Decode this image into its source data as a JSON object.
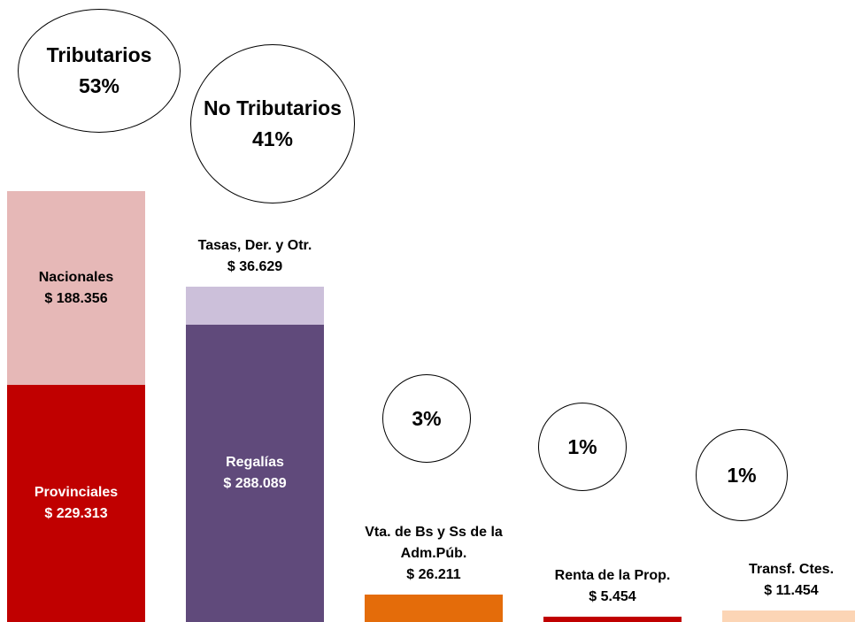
{
  "chart_data": {
    "type": "bar",
    "stacked": true,
    "ylim": [
      0,
      420000
    ],
    "groups": [
      {
        "name": "Tributarios",
        "share": 53,
        "share_label": "53%",
        "segments": [
          {
            "name": "Provinciales",
            "value": 229313,
            "value_label": "$ 229.313",
            "color": "#c00000"
          },
          {
            "name": "Nacionales",
            "value": 188356,
            "value_label": "$ 188.356",
            "color": "#e6b8b7"
          }
        ]
      },
      {
        "name": "No Tributarios",
        "share": 41,
        "share_label": "41%",
        "segments": [
          {
            "name": "Regalías",
            "value": 288089,
            "value_label": "$ 288.089",
            "color": "#604a7b"
          },
          {
            "name": "Tasas, Der. y Otr.",
            "value": 36629,
            "value_label": "$ 36.629",
            "color": "#ccc0da"
          }
        ]
      },
      {
        "share": 3,
        "share_label": "3%",
        "segments": [
          {
            "name": "Vta. de Bs y Ss de la Adm.Púb.",
            "value": 26211,
            "value_label": "$ 26.211",
            "color": "#e46c0a"
          }
        ]
      },
      {
        "share": 1,
        "share_label": "1%",
        "segments": [
          {
            "name": "Renta de la Prop.",
            "value": 5454,
            "value_label": "$ 5.454",
            "color": "#c00000"
          }
        ]
      },
      {
        "share": 1,
        "share_label": "1%",
        "segments": [
          {
            "name": "Transf. Ctes.",
            "value": 11454,
            "value_label": "$ 11.454",
            "color": "#fcd5b5"
          }
        ]
      }
    ]
  }
}
